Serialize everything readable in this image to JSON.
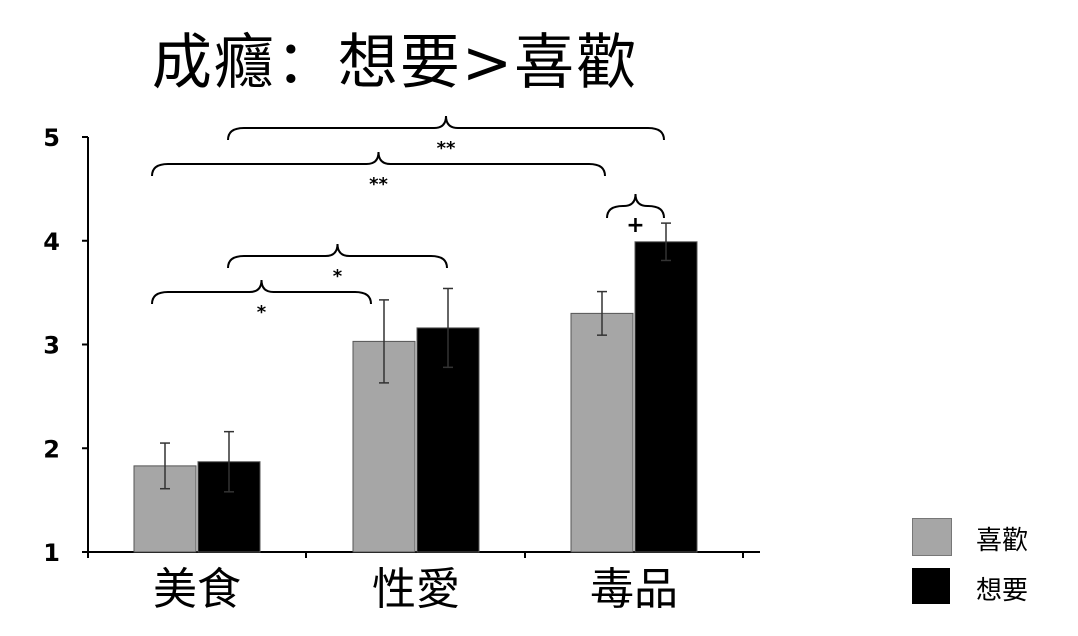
{
  "title": "成癮：想要>喜歡",
  "chart_data": {
    "type": "bar",
    "categories": [
      "美食",
      "性愛",
      "毒品"
    ],
    "series": [
      {
        "name": "喜歡",
        "color": "#a6a6a6",
        "values": [
          1.83,
          3.03,
          3.3
        ],
        "errors": [
          0.22,
          0.4,
          0.21
        ]
      },
      {
        "name": "想要",
        "color": "#000000",
        "values": [
          1.87,
          3.16,
          3.99
        ],
        "errors": [
          0.29,
          0.38,
          0.18
        ]
      }
    ],
    "ylim": [
      1,
      5
    ],
    "yticks": [
      "1",
      "2",
      "3",
      "4",
      "5"
    ],
    "legend": "bottom-right",
    "annotations": [
      {
        "from": "美食 喜歡",
        "to": "性愛 喜歡",
        "label": "*"
      },
      {
        "from": "美食 想要",
        "to": "性愛 想要",
        "label": "*"
      },
      {
        "from": "美食 喜歡",
        "to": "毒品 喜歡",
        "label": "**"
      },
      {
        "from": "美食 想要",
        "to": "毒品 想要",
        "label": "**"
      },
      {
        "from": "毒品 喜歡",
        "to": "毒品 想要",
        "label": "+"
      }
    ]
  }
}
